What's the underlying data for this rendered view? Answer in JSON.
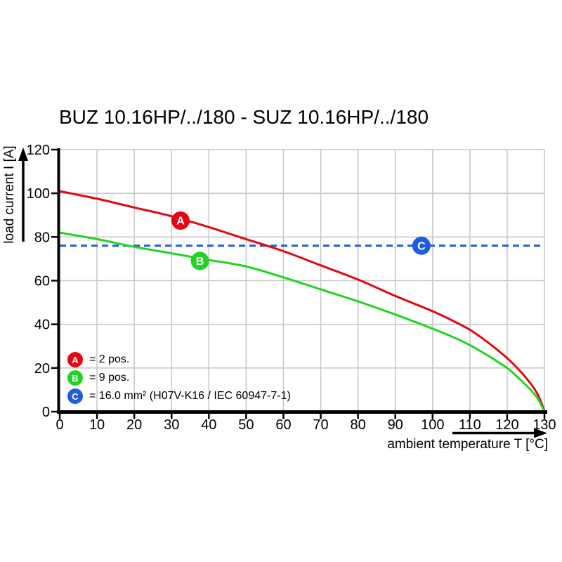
{
  "chart_data": {
    "type": "line",
    "title": "BUZ 10.16HP/../180 - SUZ 10.16HP/../180",
    "xlabel": "ambient temperature T [°C]",
    "ylabel": "load current I [A]",
    "xlim": [
      0,
      130
    ],
    "ylim": [
      0,
      120
    ],
    "x_ticks": [
      0,
      10,
      20,
      30,
      40,
      50,
      60,
      70,
      80,
      90,
      100,
      110,
      120,
      130
    ],
    "y_ticks": [
      0,
      20,
      40,
      60,
      80,
      100,
      120
    ],
    "grid": true,
    "legend_position": "lower-left",
    "series": [
      {
        "name": "A = 2 pos.",
        "color": "#e40613",
        "style": "solid",
        "points": [
          [
            0,
            101
          ],
          [
            10,
            97.5
          ],
          [
            20,
            93.5
          ],
          [
            30,
            89.5
          ],
          [
            40,
            84.5
          ],
          [
            50,
            79
          ],
          [
            60,
            73.5
          ],
          [
            70,
            67
          ],
          [
            80,
            60.5
          ],
          [
            90,
            53
          ],
          [
            100,
            46
          ],
          [
            105,
            42
          ],
          [
            110,
            37.5
          ],
          [
            115,
            31.5
          ],
          [
            120,
            24.5
          ],
          [
            123,
            19.5
          ],
          [
            126,
            13.5
          ],
          [
            128,
            8.5
          ],
          [
            129.3,
            3.5
          ],
          [
            130,
            0
          ]
        ]
      },
      {
        "name": "B = 9 pos.",
        "color": "#22d422",
        "style": "solid",
        "points": [
          [
            0,
            82
          ],
          [
            10,
            79
          ],
          [
            20,
            75.5
          ],
          [
            30,
            72.5
          ],
          [
            40,
            69.5
          ],
          [
            50,
            66.5
          ],
          [
            60,
            61.5
          ],
          [
            70,
            56
          ],
          [
            80,
            50.5
          ],
          [
            90,
            44.5
          ],
          [
            100,
            38
          ],
          [
            105,
            34.5
          ],
          [
            110,
            30.5
          ],
          [
            115,
            25.5
          ],
          [
            120,
            20
          ],
          [
            123,
            15.5
          ],
          [
            126,
            10.5
          ],
          [
            128,
            6.5
          ],
          [
            129.3,
            2.5
          ],
          [
            130,
            0
          ]
        ]
      },
      {
        "name": "C = 16.0 mm² (H07V-K16 / IEC 60947-7-1)",
        "color": "#1f5ce0",
        "style": "dashed",
        "points": [
          [
            0,
            76
          ],
          [
            130,
            76
          ]
        ]
      }
    ],
    "markers": [
      {
        "letter": "A",
        "x": 32.4,
        "y": 87.5,
        "color": "#e40613"
      },
      {
        "letter": "B",
        "x": 37.6,
        "y": 69,
        "color": "#22d422"
      },
      {
        "letter": "C",
        "x": 97,
        "y": 76,
        "color": "#1f5ce0"
      }
    ],
    "legend": [
      {
        "letter": "A",
        "label": "= 2 pos.",
        "color": "#e40613"
      },
      {
        "letter": "B",
        "label": "= 9 pos.",
        "color": "#22d422"
      },
      {
        "letter": "C",
        "label": "= 16.0 mm² (H07V-K16 / IEC 60947-7-1)",
        "color": "#1f5ce0"
      }
    ],
    "colors": {
      "grid": "#c9c9c9",
      "axis": "#000000",
      "background": "#ffffff"
    }
  }
}
